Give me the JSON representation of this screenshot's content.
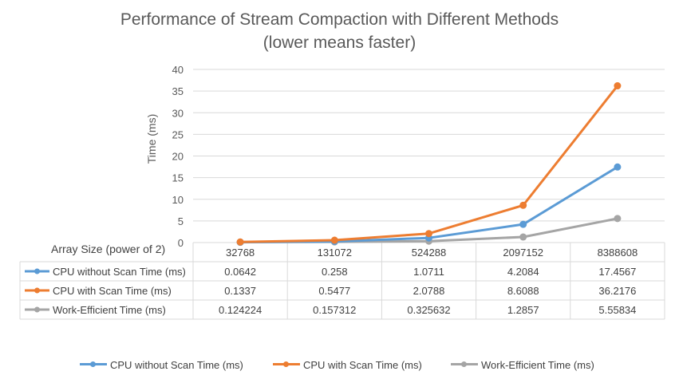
{
  "chart_data": {
    "type": "line",
    "title": "Performance of Stream Compaction with Different Methods",
    "subtitle": "(lower means faster)",
    "ylabel": "Time (ms)",
    "xlabel": "Array Size (power of 2)",
    "ylim": [
      0,
      40
    ],
    "yticks": [
      "0",
      "5",
      "10",
      "15",
      "20",
      "25",
      "30",
      "35",
      "40"
    ],
    "grid": true,
    "legend_position": "bottom",
    "categories": [
      "32768",
      "131072",
      "524288",
      "2097152",
      "8388608"
    ],
    "series": [
      {
        "name": "CPU without Scan Time (ms)",
        "color": "#5b9bd5",
        "values": [
          0.0642,
          0.258,
          1.0711,
          4.2084,
          17.4567
        ],
        "labels": [
          "0.0642",
          "0.258",
          "1.0711",
          "4.2084",
          "17.4567"
        ]
      },
      {
        "name": "CPU with Scan Time (ms)",
        "color": "#ed7d31",
        "values": [
          0.1337,
          0.5477,
          2.0788,
          8.6088,
          36.2176
        ],
        "labels": [
          "0.1337",
          "0.5477",
          "2.0788",
          "8.6088",
          "36.2176"
        ]
      },
      {
        "name": "Work-Efficient Time (ms)",
        "color": "#a5a5a5",
        "values": [
          0.124224,
          0.157312,
          0.325632,
          1.2857,
          5.55834
        ],
        "labels": [
          "0.124224",
          "0.157312",
          "0.325632",
          "1.2857",
          "5.55834"
        ]
      }
    ]
  }
}
